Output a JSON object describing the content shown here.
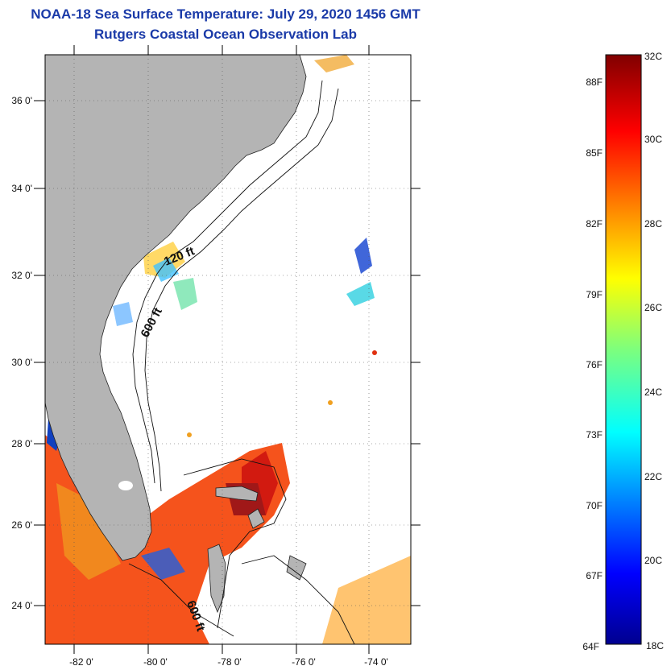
{
  "title_line1": "NOAA-18 Sea Surface Temperature:  July 29, 2020 1456 GMT",
  "title_line2": "Rutgers Coastal Ocean Observation Lab",
  "map": {
    "lat_labels": [
      "36 0'",
      "34 0'",
      "32 0'",
      "30 0'",
      "28 0'",
      "26 0'",
      "24 0'"
    ],
    "lon_labels": [
      "-82 0'",
      "-80 0'",
      "-78 0'",
      "-76 0'",
      "-74 0'"
    ],
    "contour_labels": [
      "120 ft",
      "600 ft",
      "600 ft"
    ],
    "colors": {
      "land": "#b4b4b4",
      "water_nodata": "#ffffff",
      "gridline": "#555555"
    }
  },
  "colorbar": {
    "fahrenheit_labels": [
      "88F",
      "85F",
      "82F",
      "79F",
      "76F",
      "73F",
      "70F",
      "67F",
      "64F"
    ],
    "celsius_labels": [
      "32C",
      "30C",
      "28C",
      "26C",
      "24C",
      "22C",
      "20C",
      "18C"
    ],
    "range_c": [
      18,
      32
    ],
    "range_f": [
      64,
      90
    ],
    "colormap": "jet"
  }
}
